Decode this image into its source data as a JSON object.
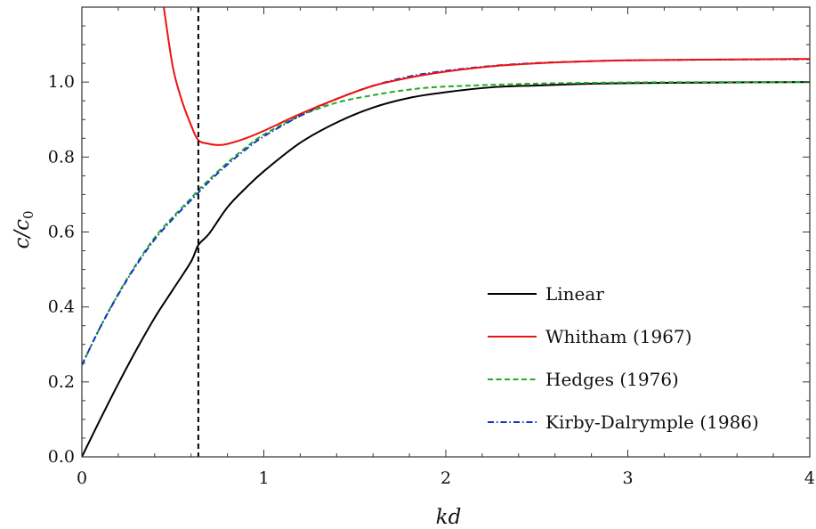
{
  "chart_data": {
    "type": "line",
    "title": "",
    "xlabel": "kd",
    "ylabel_parts": {
      "main": "c/c",
      "sub": "0"
    },
    "xlim": [
      0,
      4
    ],
    "ylim": [
      0,
      1.2
    ],
    "xticks": [
      "0",
      "1",
      "2",
      "3",
      "4"
    ],
    "yticks": [
      "0.0",
      "0.2",
      "0.4",
      "0.6",
      "0.8",
      "1.0"
    ],
    "vline": {
      "x": 0.64,
      "style": "dashed",
      "color": "#000000"
    },
    "legend_position": "bottom-right",
    "series": [
      {
        "name": "Linear",
        "color": "#000000",
        "dash": "solid",
        "x": [
          0,
          0.1,
          0.2,
          0.3,
          0.4,
          0.5,
          0.6,
          0.64,
          0.7,
          0.8,
          0.9,
          1.0,
          1.2,
          1.4,
          1.6,
          1.8,
          2.0,
          2.25,
          2.5,
          2.75,
          3.0,
          3.5,
          4.0
        ],
        "y": [
          0,
          0.099,
          0.195,
          0.286,
          0.371,
          0.446,
          0.521,
          0.565,
          0.596,
          0.666,
          0.717,
          0.762,
          0.838,
          0.892,
          0.932,
          0.958,
          0.973,
          0.986,
          0.991,
          0.995,
          0.997,
          0.999,
          1.0
        ]
      },
      {
        "name": "Whitham (1967)",
        "color": "#ee1111",
        "dash": "solid",
        "x": [
          0.45,
          0.5,
          0.55,
          0.6,
          0.64,
          0.7,
          0.75,
          0.8,
          0.9,
          1.0,
          1.2,
          1.4,
          1.6,
          1.8,
          2.0,
          2.25,
          2.5,
          2.75,
          3.0,
          3.5,
          4.0
        ],
        "y": [
          1.2,
          1.04,
          0.95,
          0.885,
          0.845,
          0.835,
          0.832,
          0.835,
          0.85,
          0.87,
          0.915,
          0.955,
          0.99,
          1.012,
          1.028,
          1.042,
          1.05,
          1.055,
          1.058,
          1.06,
          1.062
        ]
      },
      {
        "name": "Hedges (1976)",
        "color": "#22aa22",
        "dash": "dashed",
        "x": [
          0,
          0.1,
          0.2,
          0.3,
          0.4,
          0.5,
          0.6,
          0.64,
          0.7,
          0.8,
          0.9,
          1.0,
          1.2,
          1.4,
          1.6,
          1.8,
          2.0,
          2.5,
          3.0,
          3.5,
          4.0
        ],
        "y": [
          0.245,
          0.345,
          0.435,
          0.515,
          0.585,
          0.64,
          0.69,
          0.712,
          0.74,
          0.785,
          0.825,
          0.86,
          0.91,
          0.945,
          0.965,
          0.98,
          0.988,
          0.996,
          0.999,
          1.0,
          1.0
        ]
      },
      {
        "name": "Kirby-Dalrymple (1986)",
        "color": "#1133cc",
        "dash": "dashdot",
        "x": [
          0,
          0.1,
          0.2,
          0.3,
          0.4,
          0.5,
          0.6,
          0.64,
          0.7,
          0.8,
          0.9,
          1.0,
          1.2,
          1.4,
          1.6,
          1.8,
          2.0,
          2.25,
          2.5,
          2.75,
          3.0,
          3.5,
          4.0
        ],
        "y": [
          0.245,
          0.345,
          0.433,
          0.512,
          0.58,
          0.635,
          0.685,
          0.705,
          0.735,
          0.78,
          0.82,
          0.855,
          0.91,
          0.955,
          0.99,
          1.015,
          1.03,
          1.043,
          1.051,
          1.055,
          1.058,
          1.06,
          1.061
        ]
      }
    ]
  }
}
